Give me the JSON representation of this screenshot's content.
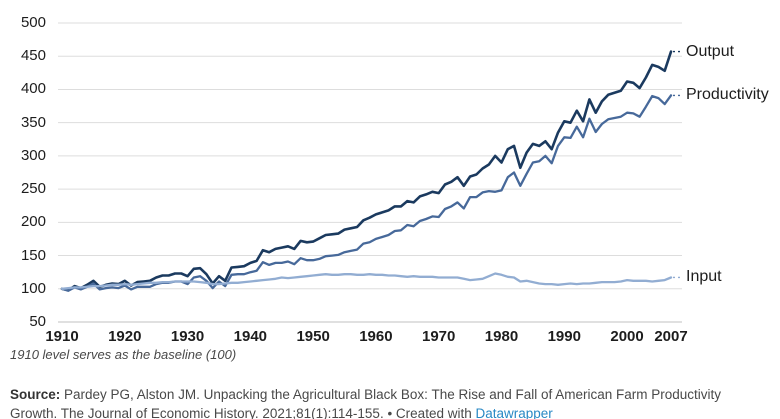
{
  "chart_data": {
    "type": "line",
    "x_range": [
      1910,
      2007
    ],
    "x_step": 1,
    "ylim": [
      50,
      500
    ],
    "yticks": [
      50,
      100,
      150,
      200,
      250,
      300,
      350,
      400,
      450,
      500
    ],
    "xticks": [
      1910,
      1920,
      1930,
      1940,
      1950,
      1960,
      1970,
      1980,
      1990,
      2000,
      2007
    ],
    "grid": "horizontal",
    "legend_position": "right-of-line-ends",
    "baseline_note": "1910 level serves as the baseline (100)",
    "series": [
      {
        "name": "Output",
        "color": "#1b3a5f",
        "stroke_width": 2.6,
        "values": [
          100,
          98,
          104,
          101,
          106,
          112,
          103,
          106,
          108,
          107,
          112,
          105,
          110,
          111,
          112,
          117,
          120,
          120,
          123,
          123,
          119,
          130,
          131,
          122,
          108,
          119,
          112,
          132,
          133,
          134,
          139,
          142,
          158,
          155,
          160,
          162,
          164,
          160,
          172,
          170,
          171,
          176,
          181,
          182,
          183,
          189,
          191,
          193,
          203,
          207,
          212,
          215,
          218,
          224,
          224,
          232,
          230,
          239,
          242,
          246,
          244,
          257,
          261,
          268,
          255,
          269,
          272,
          281,
          287,
          300,
          290,
          310,
          315,
          282,
          305,
          318,
          315,
          322,
          310,
          335,
          352,
          350,
          368,
          352,
          385,
          365,
          382,
          392,
          395,
          398,
          412,
          410,
          402,
          418,
          437,
          434,
          428,
          457
        ]
      },
      {
        "name": "Productivity",
        "color": "#47699a",
        "stroke_width": 2.3,
        "values": [
          100,
          97,
          102,
          99,
          103,
          108,
          99,
          101,
          102,
          101,
          105,
          99,
          103,
          103,
          103,
          107,
          109,
          109,
          111,
          111,
          107,
          117,
          119,
          112,
          101,
          111,
          104,
          121,
          122,
          122,
          125,
          127,
          140,
          136,
          139,
          139,
          141,
          137,
          146,
          143,
          143,
          145,
          149,
          150,
          151,
          155,
          157,
          159,
          168,
          170,
          175,
          178,
          181,
          187,
          188,
          196,
          194,
          202,
          205,
          209,
          208,
          220,
          224,
          230,
          221,
          238,
          238,
          245,
          247,
          246,
          248,
          268,
          275,
          255,
          273,
          290,
          292,
          300,
          289,
          315,
          328,
          327,
          344,
          328,
          356,
          336,
          348,
          355,
          357,
          359,
          365,
          364,
          359,
          374,
          390,
          387,
          378,
          391
        ]
      },
      {
        "name": "Input",
        "color": "#92add2",
        "stroke_width": 2.3,
        "values": [
          100,
          101,
          102,
          102,
          103,
          104,
          104,
          105,
          106,
          106,
          107,
          106,
          107,
          108,
          109,
          109,
          110,
          110,
          111,
          111,
          111,
          111,
          110,
          109,
          107,
          107,
          108,
          109,
          109,
          110,
          111,
          112,
          113,
          114,
          115,
          117,
          116,
          117,
          118,
          119,
          120,
          121,
          122,
          121,
          121,
          122,
          122,
          121,
          121,
          122,
          121,
          121,
          120,
          120,
          119,
          118,
          119,
          118,
          118,
          118,
          117,
          117,
          117,
          117,
          115,
          113,
          114,
          115,
          119,
          123,
          121,
          118,
          117,
          111,
          112,
          110,
          108,
          107,
          107,
          106,
          107,
          108,
          107,
          108,
          108,
          109,
          110,
          110,
          110,
          111,
          113,
          112,
          112,
          112,
          111,
          112,
          113,
          117
        ]
      }
    ],
    "colors": {
      "gridline": "#dddddd",
      "axis_baseline": "#c2c2c2",
      "tick_label": "#1d1d1d"
    }
  },
  "footer": {
    "note": "1910 level serves as the baseline (100)",
    "source_label": "Source:",
    "source_text": " Pardey PG, Alston JM. Unpacking the Agricultural Black Box: The Rise and Fall of American Farm Productivity Growth. The Journal of Economic History. 2021;81(1):114-155.",
    "separator": " • Created with ",
    "credit_link": "Datawrapper",
    "credit_link_color": "#2989c5"
  }
}
